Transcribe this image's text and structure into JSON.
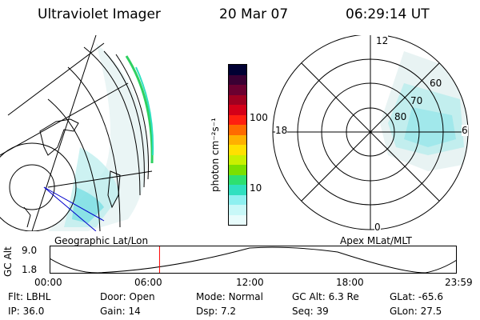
{
  "header": {
    "instrument": "Ultraviolet Imager",
    "date": "20 Mar 07",
    "time": "06:29:14 UT"
  },
  "colorbar": {
    "unit_label": "photon cm⁻²s⁻¹",
    "ticks": [
      "100",
      "10"
    ],
    "colors": [
      "#000033",
      "#3a0033",
      "#6b0030",
      "#a00020",
      "#d40018",
      "#ff2010",
      "#ff6a00",
      "#ffb000",
      "#ffe000",
      "#c8f000",
      "#7ae000",
      "#2ee070",
      "#30e0c0",
      "#8ef0f0",
      "#c8f8f8",
      "#e8fcfc"
    ]
  },
  "polar": {
    "labels": {
      "top": "12",
      "left": "18",
      "right": "6",
      "bottom": "0"
    },
    "rings": [
      "80",
      "70",
      "60"
    ]
  },
  "panel_labels": {
    "left": "Geographic Lat/Lon",
    "right": "Apex MLat/MLT"
  },
  "orbit_plot": {
    "ylabel": "GC Alt",
    "yticks": [
      "9.0",
      "1.8"
    ],
    "xticks": [
      "00:00",
      "06:00",
      "12:00",
      "18:00",
      "23:59"
    ],
    "marker_time_fraction": 0.27,
    "marker_color": "#ff0000"
  },
  "info": {
    "row1": [
      {
        "label": "Flt:",
        "value": "LBHL"
      },
      {
        "label": "Door:",
        "value": "Open"
      },
      {
        "label": "Mode:",
        "value": "Normal"
      },
      {
        "label": "GC Alt:",
        "value": "6.3 Re"
      },
      {
        "label": "GLat:",
        "value": "-65.6"
      }
    ],
    "row2": [
      {
        "label": "IP:",
        "value": "36.0"
      },
      {
        "label": "Gain:",
        "value": "14"
      },
      {
        "label": "Dsp:",
        "value": "7.2"
      },
      {
        "label": "Seq:",
        "value": "39"
      },
      {
        "label": "GLon:",
        "value": "27.5"
      }
    ]
  }
}
